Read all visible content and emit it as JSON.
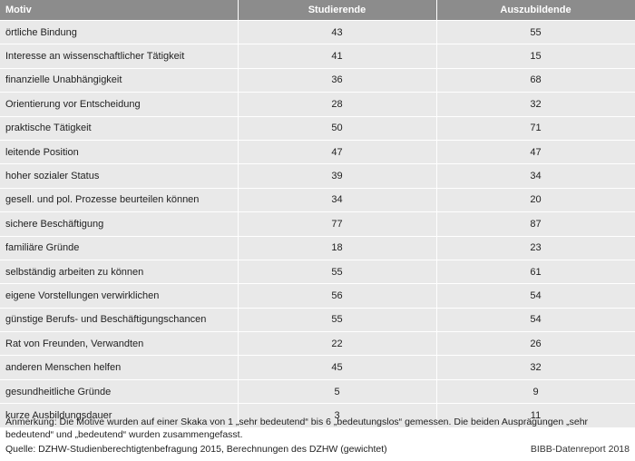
{
  "table": {
    "headers": {
      "motiv": "Motiv",
      "studierende": "Studierende",
      "auszubildende": "Auszubildende"
    },
    "rows": [
      {
        "motiv": "örtliche Bindung",
        "studierende": "43",
        "auszubildende": "55"
      },
      {
        "motiv": "Interesse an wissenschaftlicher Tätigkeit",
        "studierende": "41",
        "auszubildende": "15"
      },
      {
        "motiv": "finanzielle Unabhängigkeit",
        "studierende": "36",
        "auszubildende": "68"
      },
      {
        "motiv": "Orientierung vor Entscheidung",
        "studierende": "28",
        "auszubildende": "32"
      },
      {
        "motiv": "praktische Tätigkeit",
        "studierende": "50",
        "auszubildende": "71"
      },
      {
        "motiv": "leitende Position",
        "studierende": "47",
        "auszubildende": "47"
      },
      {
        "motiv": "hoher sozialer Status",
        "studierende": "39",
        "auszubildende": "34"
      },
      {
        "motiv": "gesell. und pol. Prozesse beurteilen können",
        "studierende": "34",
        "auszubildende": "20"
      },
      {
        "motiv": "sichere Beschäftigung",
        "studierende": "77",
        "auszubildende": "87"
      },
      {
        "motiv": "familiäre Gründe",
        "studierende": "18",
        "auszubildende": "23"
      },
      {
        "motiv": "selbständig arbeiten zu können",
        "studierende": "55",
        "auszubildende": "61"
      },
      {
        "motiv": "eigene Vorstellungen verwirklichen",
        "studierende": "56",
        "auszubildende": "54"
      },
      {
        "motiv": "günstige Berufs- und Beschäftigungschancen",
        "studierende": "55",
        "auszubildende": "54"
      },
      {
        "motiv": "Rat von Freunden, Verwandten",
        "studierende": "22",
        "auszubildende": "26"
      },
      {
        "motiv": "anderen Menschen helfen",
        "studierende": "45",
        "auszubildende": "32"
      },
      {
        "motiv": "gesundheitliche Gründe",
        "studierende": "5",
        "auszubildende": "9"
      },
      {
        "motiv": "kurze Ausbildungsdauer",
        "studierende": "3",
        "auszubildende": "11"
      }
    ]
  },
  "notes": {
    "anmerkung": "Anmerkung: Die Motive wurden auf einer Skaka von 1 „sehr bedeutend“ bis 6 „bedeutungslos“ gemessen. Die beiden Ausprägungen „sehr bedeutend“ und „bedeutend“ wurden zusammengefasst.",
    "quelle": "Quelle: DZHW-Studienberechtigtenbefragung 2015, Berechnungen des DZHW (gewichtet)",
    "credit": "BIBB-Datenreport 2018"
  }
}
